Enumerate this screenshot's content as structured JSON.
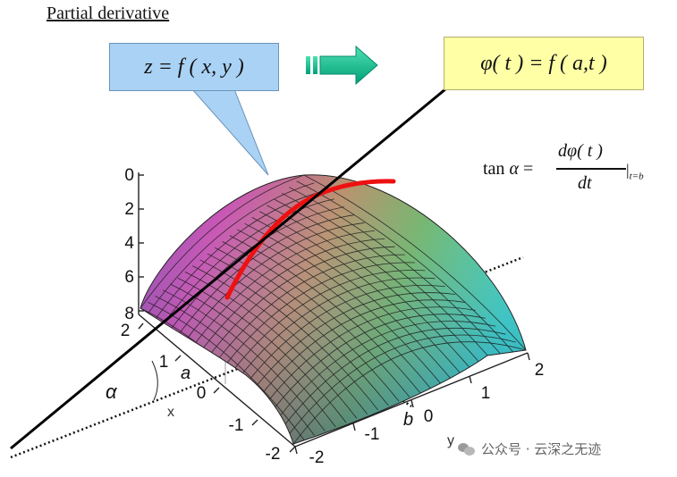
{
  "title": "Partial derivative",
  "function_box": "z = f ( x, y )",
  "restriction_box": "φ( t ) = f ( a,t )",
  "tangent_formula": {
    "lhs_prefix": "tan ",
    "lhs_symbol": "α",
    "lhs_eq": " = ",
    "numerator": "dφ( t )",
    "denominator": "dt",
    "evaluation": "|",
    "evaluation_sub": "t=b"
  },
  "z_axis_ticks": [
    "0",
    "2",
    "4",
    "6",
    "8"
  ],
  "x_axis_ticks": [
    "2",
    "1",
    "0",
    "-1",
    "-2"
  ],
  "y_axis_ticks": [
    "-2",
    "-1",
    "0",
    "1",
    "2"
  ],
  "x_axis_label": "x",
  "y_axis_label": "y",
  "point_labels": {
    "a": "a",
    "b": "b",
    "alpha": "α"
  },
  "watermark": "公众号 · 云深之无迹",
  "colors": {
    "left_box": "#a9d2f5",
    "right_box": "#ffffa6",
    "arrow": "#00b38a",
    "curve": "#ee1111"
  }
}
